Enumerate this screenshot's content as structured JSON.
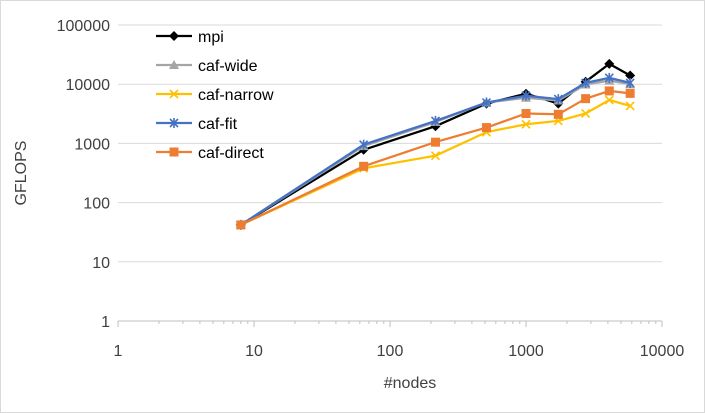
{
  "chart_data": {
    "type": "line",
    "xscale": "log",
    "yscale": "log",
    "xlabel": "#nodes",
    "ylabel": "GFLOPS",
    "xlim": [
      1,
      10000
    ],
    "ylim": [
      1,
      100000
    ],
    "x_ticks": [
      "1",
      "10",
      "100",
      "1000",
      "10000"
    ],
    "y_ticks": [
      "1",
      "10",
      "100",
      "1000",
      "10000",
      "100000"
    ],
    "grid": "horizontal",
    "legend": "top-left",
    "series": [
      {
        "name": "mpi",
        "color": "#000000",
        "marker": "diamond",
        "x": [
          8,
          64,
          216,
          512,
          1000,
          1728,
          2744,
          4096,
          5832
        ],
        "y": [
          42,
          780,
          1950,
          4700,
          6900,
          4700,
          11000,
          22000,
          14000
        ]
      },
      {
        "name": "caf-wide",
        "color": "#a5a5a5",
        "marker": "triangle",
        "x": [
          8,
          64,
          216,
          512,
          1000,
          1728,
          2744,
          4096,
          5832
        ],
        "y": [
          42,
          900,
          2300,
          4900,
          5900,
          5300,
          9900,
          11500,
          10000
        ]
      },
      {
        "name": "caf-narrow",
        "color": "#ffc000",
        "marker": "x",
        "x": [
          8,
          64,
          216,
          512,
          1000,
          1728,
          2744,
          4096,
          5832
        ],
        "y": [
          42,
          380,
          620,
          1550,
          2100,
          2400,
          3200,
          5400,
          4300
        ]
      },
      {
        "name": "caf-fit",
        "color": "#4472c4",
        "marker": "star",
        "x": [
          8,
          64,
          216,
          512,
          1000,
          1728,
          2744,
          4096,
          5832
        ],
        "y": [
          42,
          950,
          2400,
          4900,
          6400,
          5600,
          10500,
          12800,
          10500
        ]
      },
      {
        "name": "caf-direct",
        "color": "#ed7d31",
        "marker": "square",
        "x": [
          8,
          64,
          216,
          512,
          1000,
          1728,
          2744,
          4096,
          5832
        ],
        "y": [
          42,
          410,
          1050,
          1850,
          3200,
          3100,
          5700,
          7700,
          7000
        ]
      }
    ]
  }
}
